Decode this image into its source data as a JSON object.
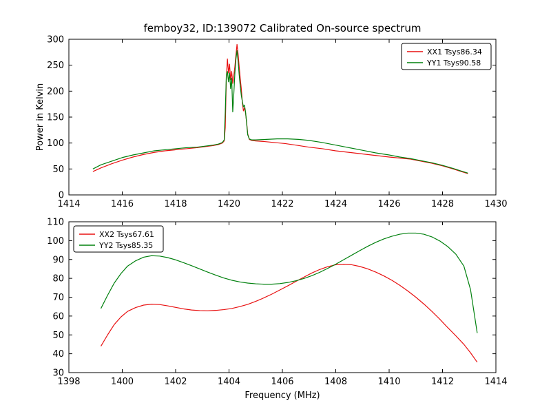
{
  "figure": {
    "title": "femboy32, ID:139072 Calibrated On-source spectrum",
    "background": "#ffffff"
  },
  "chart_data": [
    {
      "type": "line",
      "title": "femboy32, ID:139072 Calibrated On-source spectrum",
      "xlabel": "",
      "ylabel": "Power in Kelvin",
      "xlim": [
        1414,
        1430
      ],
      "ylim": [
        0,
        300
      ],
      "xticks": [
        1414,
        1416,
        1418,
        1420,
        1422,
        1424,
        1426,
        1428,
        1430
      ],
      "yticks": [
        0,
        50,
        100,
        150,
        200,
        250,
        300
      ],
      "grid": false,
      "legend_position": "upper right",
      "series": [
        {
          "name": "XX1 Tsys86.34",
          "color": "#e81010",
          "x": [
            1414.9,
            1415.2,
            1415.6,
            1416.0,
            1416.4,
            1416.8,
            1417.2,
            1417.6,
            1418.0,
            1418.4,
            1418.8,
            1419.1,
            1419.4,
            1419.6,
            1419.75,
            1419.82,
            1419.86,
            1419.9,
            1419.94,
            1419.98,
            1420.02,
            1420.06,
            1420.1,
            1420.14,
            1420.18,
            1420.22,
            1420.26,
            1420.3,
            1420.34,
            1420.38,
            1420.42,
            1420.46,
            1420.5,
            1420.54,
            1420.58,
            1420.62,
            1420.66,
            1420.7,
            1420.76,
            1420.85,
            1421.0,
            1421.3,
            1421.7,
            1422.1,
            1422.5,
            1423.0,
            1423.5,
            1424.0,
            1424.5,
            1425.0,
            1425.5,
            1426.0,
            1426.4,
            1426.8,
            1427.2,
            1427.6,
            1428.0,
            1428.4,
            1428.7,
            1428.95
          ],
          "y": [
            45,
            52,
            60,
            67,
            73,
            78,
            82,
            85,
            87,
            89,
            91,
            93,
            95,
            97,
            100,
            104,
            130,
            225,
            262,
            235,
            252,
            222,
            238,
            215,
            230,
            248,
            270,
            290,
            272,
            248,
            225,
            205,
            178,
            162,
            168,
            158,
            140,
            118,
            107,
            105,
            104,
            103,
            101,
            99,
            96,
            92,
            89,
            85,
            82,
            79,
            76,
            73,
            71,
            69,
            65,
            61,
            56,
            50,
            45,
            41
          ]
        },
        {
          "name": "YY1 Tsys90.58",
          "color": "#00800d",
          "x": [
            1414.9,
            1415.2,
            1415.6,
            1416.0,
            1416.4,
            1416.8,
            1417.2,
            1417.6,
            1418.0,
            1418.4,
            1418.8,
            1419.1,
            1419.4,
            1419.6,
            1419.75,
            1419.82,
            1419.86,
            1419.9,
            1419.94,
            1419.98,
            1420.02,
            1420.06,
            1420.1,
            1420.14,
            1420.18,
            1420.22,
            1420.26,
            1420.3,
            1420.34,
            1420.38,
            1420.42,
            1420.46,
            1420.5,
            1420.54,
            1420.58,
            1420.62,
            1420.66,
            1420.7,
            1420.76,
            1420.85,
            1421.0,
            1421.4,
            1421.8,
            1422.2,
            1422.6,
            1423.0,
            1423.5,
            1424.0,
            1424.5,
            1425.0,
            1425.5,
            1426.0,
            1426.4,
            1426.8,
            1427.2,
            1427.6,
            1428.0,
            1428.4,
            1428.7,
            1428.95
          ],
          "y": [
            50,
            58,
            65,
            72,
            77,
            81,
            85,
            87,
            89,
            91,
            92,
            94,
            96,
            98,
            101,
            106,
            160,
            232,
            238,
            218,
            235,
            205,
            225,
            160,
            195,
            235,
            262,
            278,
            258,
            232,
            210,
            192,
            180,
            170,
            173,
            160,
            138,
            116,
            108,
            106,
            106,
            107,
            108,
            108,
            107,
            105,
            101,
            96,
            91,
            86,
            81,
            77,
            73,
            70,
            66,
            62,
            57,
            51,
            46,
            42
          ]
        }
      ]
    },
    {
      "type": "line",
      "title": "",
      "xlabel": "Frequency (MHz)",
      "ylabel": "",
      "xlim": [
        1398,
        1414
      ],
      "ylim": [
        30,
        110
      ],
      "xticks": [
        1398,
        1400,
        1402,
        1404,
        1406,
        1408,
        1410,
        1412,
        1414
      ],
      "yticks": [
        30,
        40,
        50,
        60,
        70,
        80,
        90,
        100,
        110
      ],
      "grid": false,
      "legend_position": "upper left",
      "series": [
        {
          "name": "XX2 Tsys67.61",
          "color": "#e81010",
          "x": [
            1399.2,
            1399.45,
            1399.7,
            1399.95,
            1400.2,
            1400.5,
            1400.8,
            1401.1,
            1401.4,
            1401.7,
            1402.0,
            1402.3,
            1402.6,
            1402.9,
            1403.2,
            1403.5,
            1403.8,
            1404.1,
            1404.4,
            1404.7,
            1405.0,
            1405.3,
            1405.6,
            1405.9,
            1406.2,
            1406.5,
            1406.8,
            1407.1,
            1407.4,
            1407.7,
            1408.0,
            1408.3,
            1408.6,
            1408.9,
            1409.2,
            1409.5,
            1409.8,
            1410.1,
            1410.4,
            1410.7,
            1411.0,
            1411.3,
            1411.6,
            1411.9,
            1412.2,
            1412.5,
            1412.8,
            1413.05,
            1413.3
          ],
          "y": [
            44,
            50,
            55.5,
            59.5,
            62.5,
            64.5,
            65.8,
            66.3,
            66.1,
            65.4,
            64.6,
            63.8,
            63.2,
            62.9,
            62.8,
            63.0,
            63.4,
            64.0,
            65.0,
            66.2,
            67.8,
            69.6,
            71.6,
            73.8,
            76.0,
            78.3,
            80.6,
            82.8,
            84.7,
            86.2,
            87.2,
            87.5,
            87.2,
            86.3,
            85.0,
            83.3,
            81.3,
            79.0,
            76.3,
            73.3,
            70.0,
            66.4,
            62.5,
            58.3,
            53.8,
            49.5,
            45.0,
            40.5,
            35.5
          ]
        },
        {
          "name": "YY2 Tsys85.35",
          "color": "#00800d",
          "x": [
            1399.2,
            1399.45,
            1399.7,
            1399.95,
            1400.2,
            1400.5,
            1400.8,
            1401.1,
            1401.4,
            1401.7,
            1402.0,
            1402.3,
            1402.6,
            1402.9,
            1403.2,
            1403.5,
            1403.8,
            1404.1,
            1404.4,
            1404.7,
            1405.0,
            1405.3,
            1405.6,
            1405.9,
            1406.2,
            1406.5,
            1406.8,
            1407.1,
            1407.4,
            1407.7,
            1408.0,
            1408.3,
            1408.6,
            1408.9,
            1409.2,
            1409.5,
            1409.8,
            1410.1,
            1410.4,
            1410.7,
            1411.0,
            1411.3,
            1411.6,
            1411.9,
            1412.2,
            1412.5,
            1412.8,
            1413.05,
            1413.3
          ],
          "y": [
            64,
            71,
            77.5,
            82.5,
            86.5,
            89.3,
            91.2,
            92.0,
            91.8,
            91.0,
            89.8,
            88.3,
            86.7,
            85.0,
            83.3,
            81.7,
            80.2,
            79.0,
            78.1,
            77.5,
            77.1,
            76.9,
            76.9,
            77.2,
            77.8,
            78.7,
            79.9,
            81.4,
            83.2,
            85.3,
            87.5,
            89.9,
            92.3,
            94.7,
            97.0,
            99.1,
            100.9,
            102.3,
            103.4,
            104.0,
            104.0,
            103.4,
            102.0,
            99.8,
            96.8,
            92.8,
            86.5,
            74.0,
            51.0
          ]
        }
      ]
    }
  ]
}
